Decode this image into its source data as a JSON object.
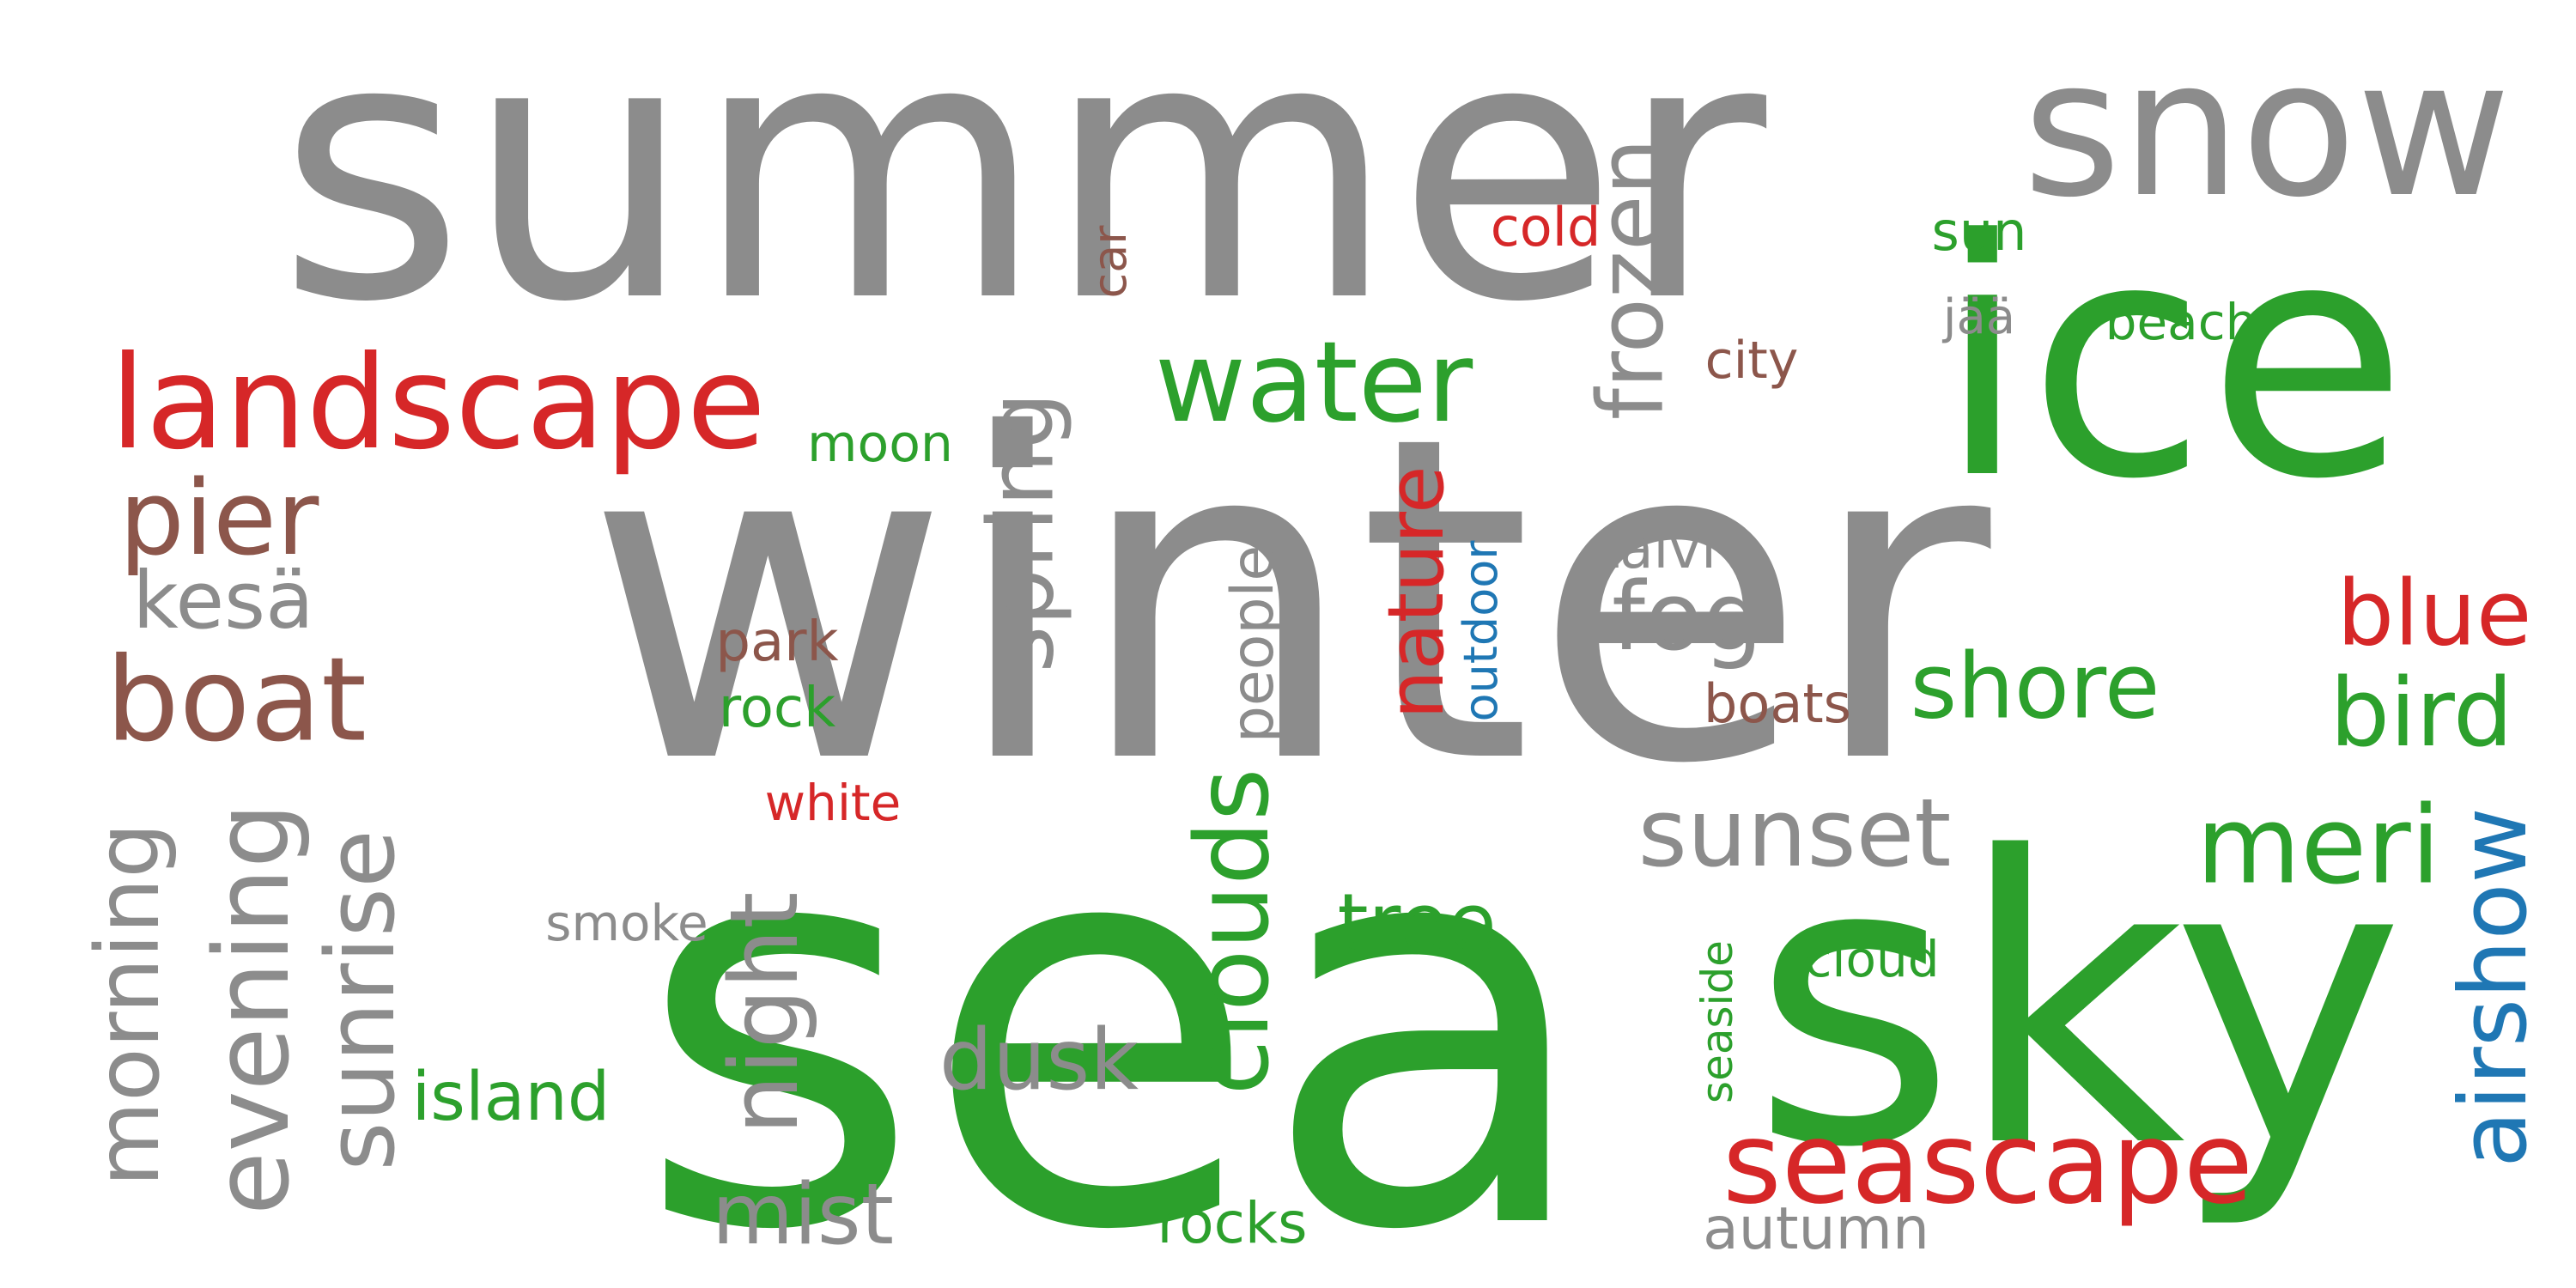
{
  "words": {
    "summer": "summer",
    "winter": "winter",
    "sea": "sea",
    "sky": "sky",
    "ice": "ice",
    "snow": "snow",
    "landscape": "landscape",
    "water": "water",
    "frozen": "frozen",
    "spring": "spring",
    "pier": "pier",
    "kesa": "kesä",
    "boat": "boat",
    "fog": "fog",
    "shore": "shore",
    "nature": "nature",
    "people": "people",
    "outdoor": "outdoor",
    "talvi": "talvi",
    "park": "park",
    "rock": "rock",
    "boats": "boats",
    "blue": "blue",
    "bird": "bird",
    "moon": "moon",
    "cold": "cold",
    "car": "car",
    "sun": "sun",
    "jaa": "jää",
    "beach": "beach",
    "city": "city",
    "morning": "morning",
    "evening": "evening",
    "sunrise": "sunrise",
    "night": "night",
    "clouds": "clouds",
    "sunset": "sunset",
    "meri": "meri",
    "airshow": "airshow",
    "tree": "tree",
    "dusk": "dusk",
    "smoke": "smoke",
    "white": "white",
    "island": "island",
    "mist": "mist",
    "rocks": "rocks",
    "seascape": "seascape",
    "autumn": "autumn",
    "cloud": "cloud",
    "seaside": "seaside"
  },
  "colors": {
    "gray": "#8c8c8c",
    "green": "#2ca02c",
    "red": "#d62728",
    "brown": "#8c564b",
    "blue": "#1f77b4"
  }
}
